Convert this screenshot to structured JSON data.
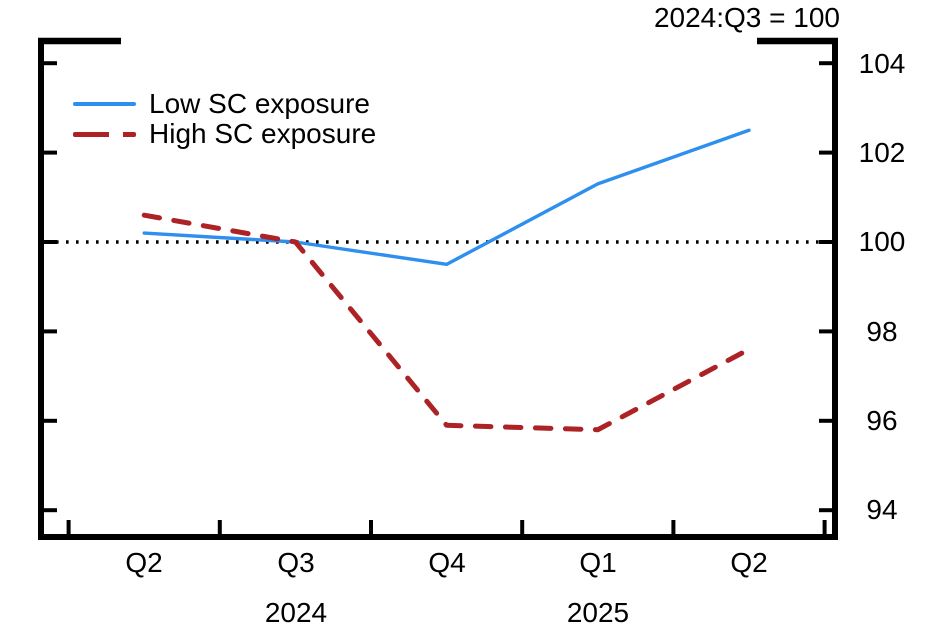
{
  "chart_data": {
    "type": "line",
    "title": "2024:Q3 = 100",
    "x_categories": [
      "Q2",
      "Q3",
      "Q4",
      "Q1",
      "Q2"
    ],
    "x_year_labels": [
      {
        "label": "2024",
        "under_category_index": 1
      },
      {
        "label": "2025",
        "under_category_index": 3
      }
    ],
    "y_axis": {
      "side": "right",
      "min": 94,
      "max": 104,
      "tick_step": 2,
      "tick_labels": [
        "104",
        "102",
        "100",
        "98",
        "96",
        "94"
      ]
    },
    "reference_line": {
      "value": 100,
      "style": "dotted",
      "color": "#000000"
    },
    "series": [
      {
        "name": "Low SC exposure",
        "color": "#2E8FEF",
        "line_style": "solid",
        "values": [
          100.2,
          100,
          99.5,
          101.3,
          102.5
        ]
      },
      {
        "name": "High SC exposure",
        "color": "#AC2225",
        "line_style": "dashed",
        "values": [
          100.6,
          100,
          95.9,
          95.8,
          97.6
        ]
      }
    ],
    "legend_position": "top-left",
    "grid": false,
    "frame_color": "#000000"
  }
}
